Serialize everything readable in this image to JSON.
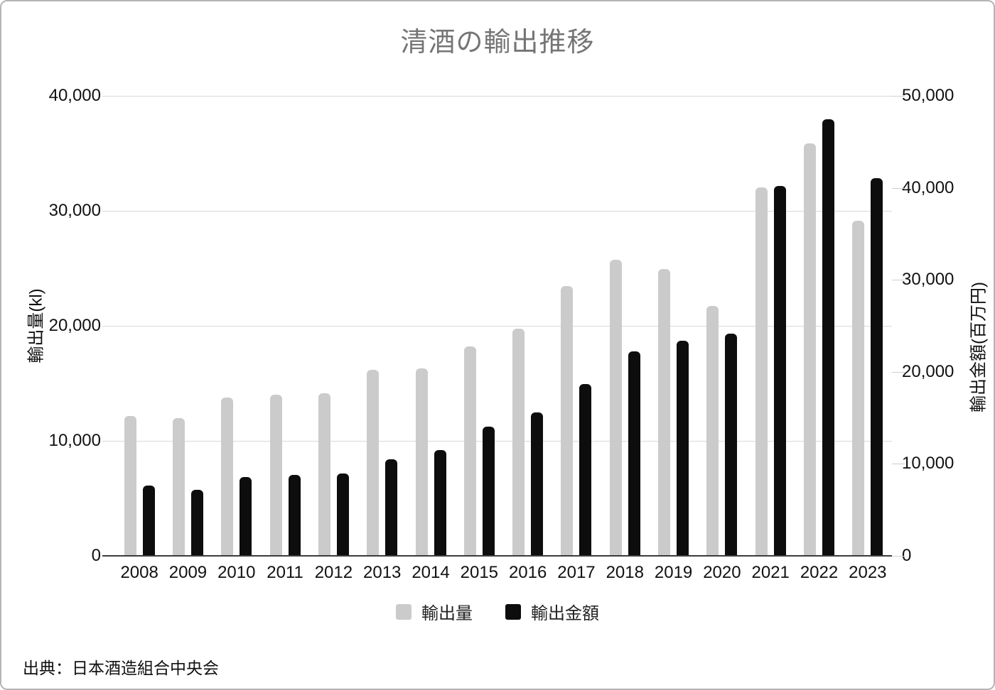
{
  "title": "清酒の輸出推移",
  "source": {
    "text": "出典：日本酒造組合中央会"
  },
  "colors": {
    "volume_bar": "#cbcbcb",
    "value_bar": "#0d0d0d",
    "title_text": "#757575",
    "gridline": "#d9d9d9",
    "axis_line": "#3c3c3c",
    "frame_border": "#b5b5b5"
  },
  "legend": {
    "items": [
      {
        "label": "輸出量",
        "color": "#cbcbcb"
      },
      {
        "label": "輸出金額",
        "color": "#0d0d0d"
      }
    ]
  },
  "chart_data": {
    "type": "bar",
    "title": "清酒の輸出推移",
    "categories": [
      "2008",
      "2009",
      "2010",
      "2011",
      "2012",
      "2013",
      "2014",
      "2015",
      "2016",
      "2017",
      "2018",
      "2019",
      "2020",
      "2021",
      "2022",
      "2023"
    ],
    "series": [
      {
        "name": "輸出量",
        "axis": "left",
        "unit": "kl",
        "color": "#cbcbcb",
        "values": [
          12151,
          11949,
          13770,
          14022,
          14131,
          16202,
          16314,
          18180,
          19737,
          23482,
          25747,
          24928,
          21746,
          32053,
          35895,
          29135
        ]
      },
      {
        "name": "輸出金額",
        "axis": "right",
        "unit": "百万円",
        "color": "#0d0d0d",
        "values": [
          7663,
          7184,
          8541,
          8776,
          8946,
          10524,
          11507,
          14011,
          15581,
          18679,
          22232,
          23412,
          24141,
          40178,
          47490,
          41082
        ]
      }
    ],
    "left_axis": {
      "label": "輸出量(kl)",
      "min": 0,
      "max": 40000,
      "tick_labels": [
        "40,000",
        "30,000",
        "20,000",
        "10,000",
        "0"
      ]
    },
    "right_axis": {
      "label": "輸出金額(百万円)",
      "min": 0,
      "max": 50000,
      "tick_labels": [
        "50,000",
        "40,000",
        "30,000",
        "20,000",
        "10,000",
        "0"
      ]
    },
    "grid": true,
    "legend_position": "bottom"
  }
}
